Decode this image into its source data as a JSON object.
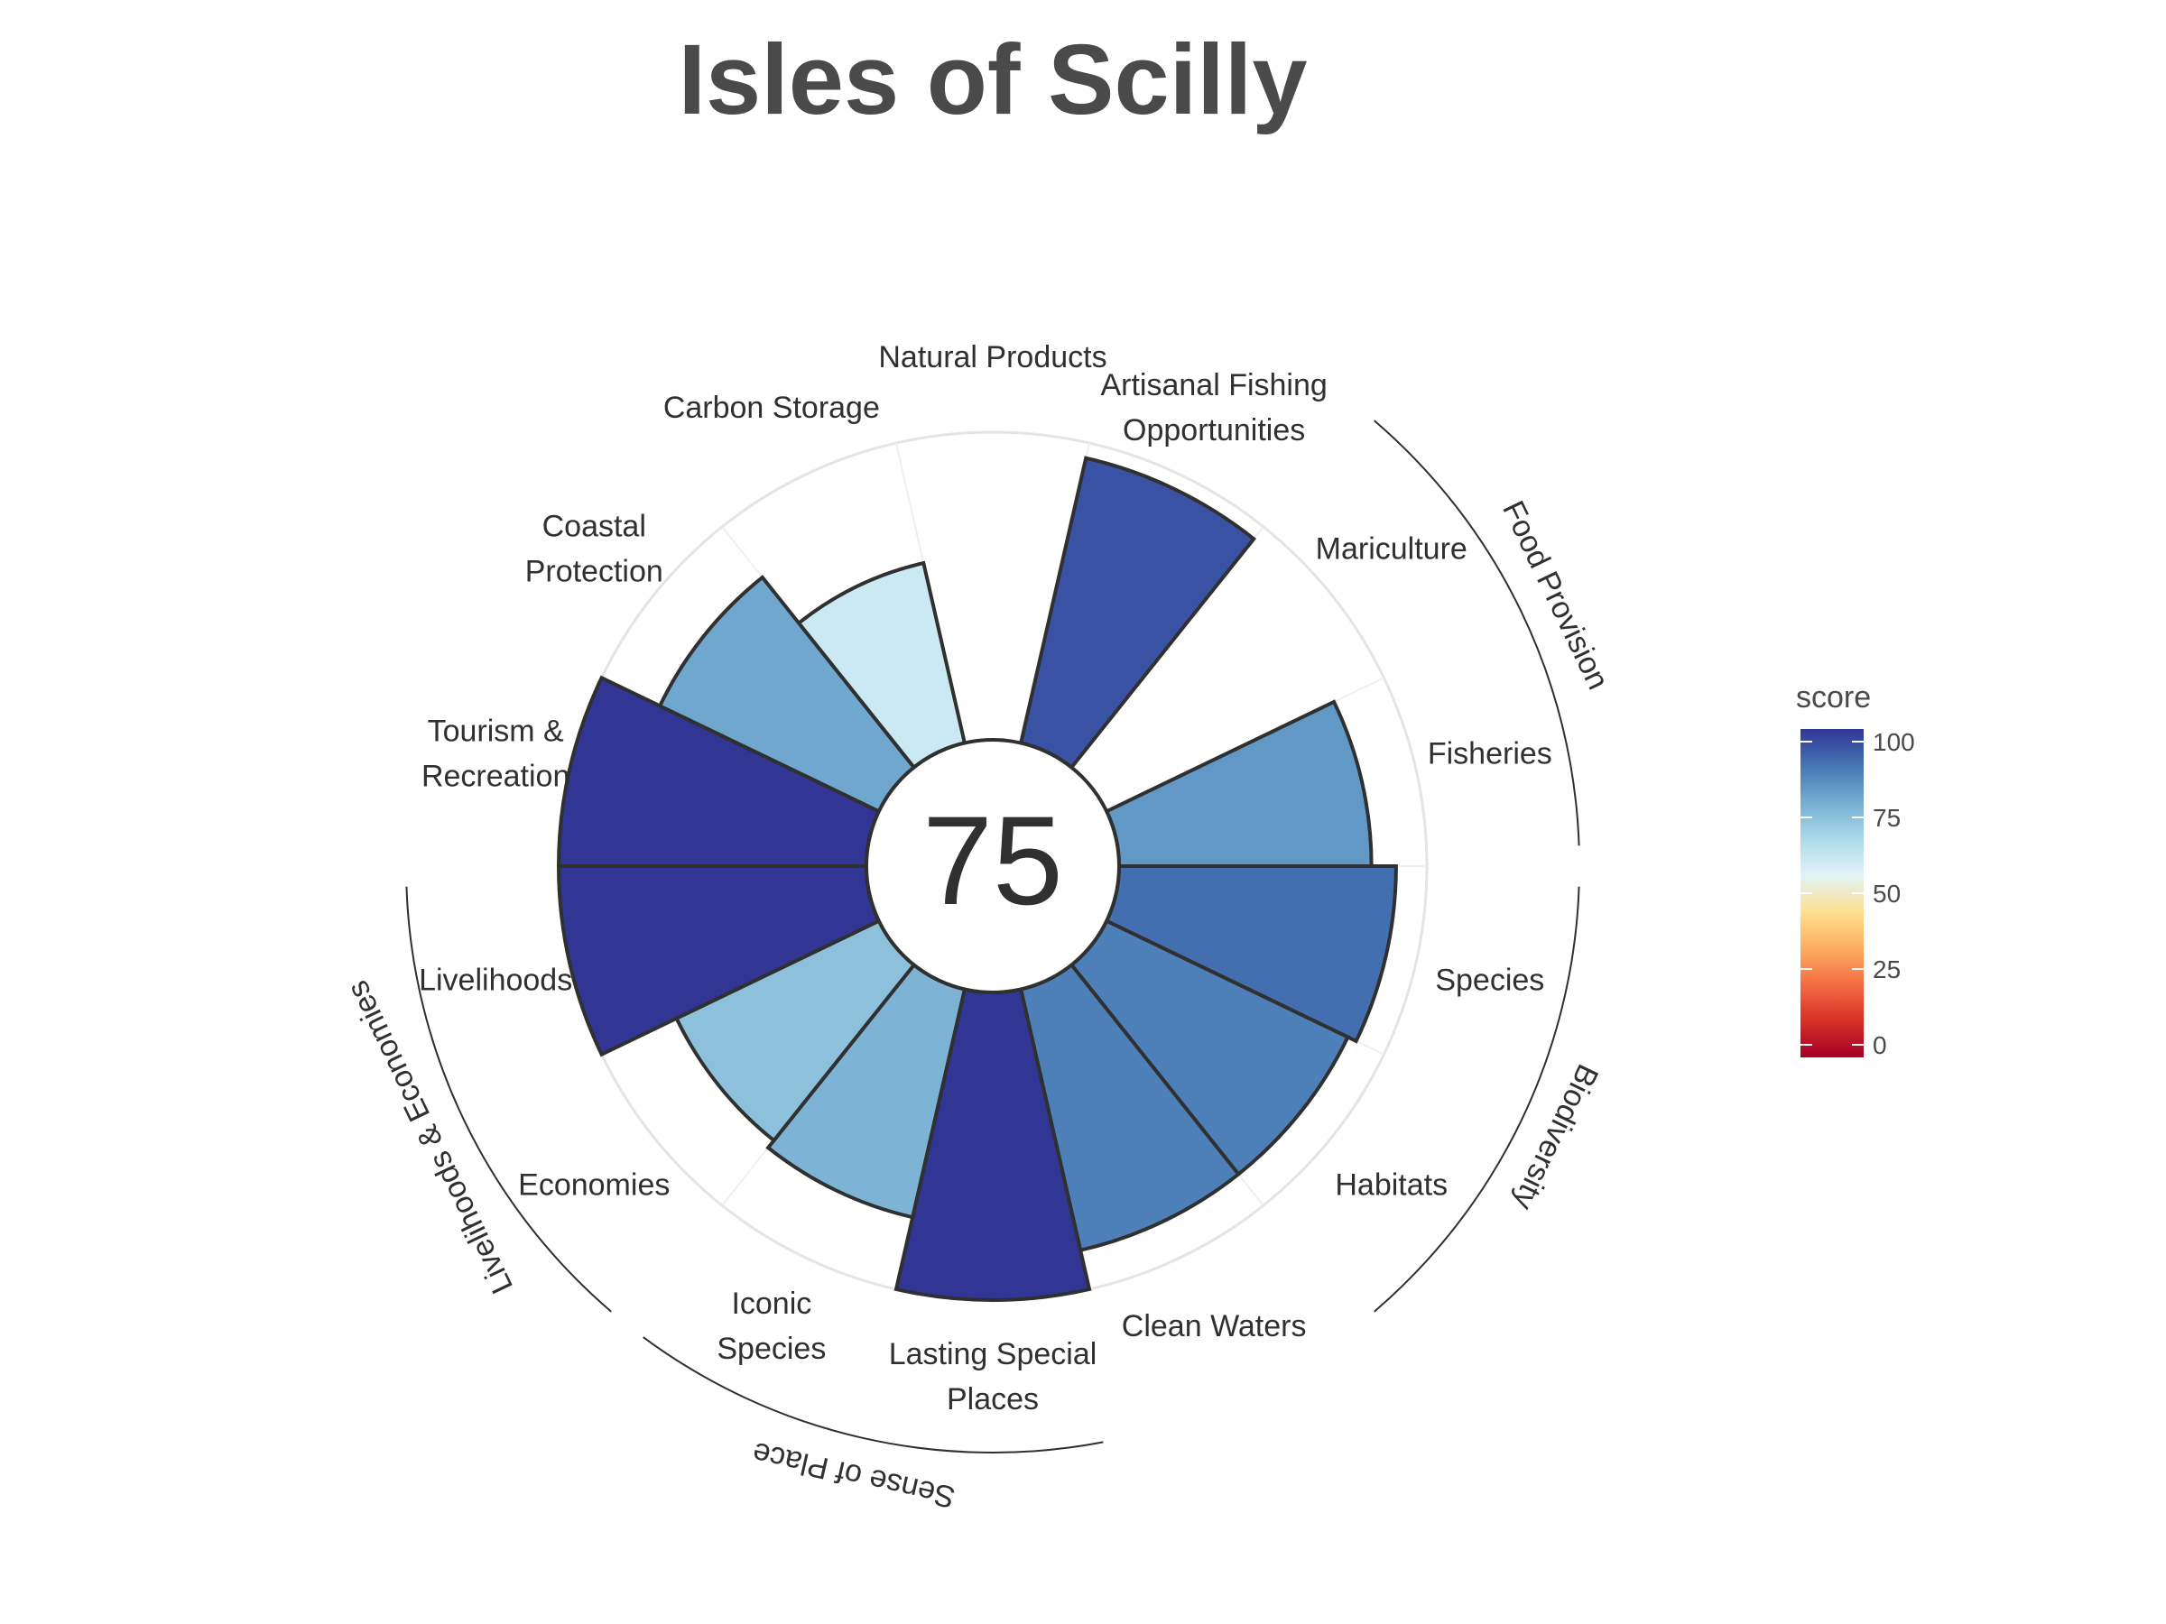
{
  "chart_data": {
    "type": "polar-bar",
    "title": "Isles of Scilly",
    "overall_score": "75",
    "ylim": [
      0,
      100
    ],
    "goals": [
      {
        "label": [
          "Natural Products"
        ],
        "value": 0,
        "group": null
      },
      {
        "label": [
          "Artisanal Fishing",
          "Opportunities"
        ],
        "value": 95,
        "group": null
      },
      {
        "label": [
          "Mariculture"
        ],
        "value": 0,
        "group": "Food Provision"
      },
      {
        "label": [
          "Fisheries"
        ],
        "value": 82,
        "group": "Food Provision"
      },
      {
        "label": [
          "Species"
        ],
        "value": 90,
        "group": "Biodiversity"
      },
      {
        "label": [
          "Habitats"
        ],
        "value": 87,
        "group": "Biodiversity"
      },
      {
        "label": [
          "Clean Waters"
        ],
        "value": 87,
        "group": null
      },
      {
        "label": [
          "Lasting Special",
          "Places"
        ],
        "value": 100,
        "group": "Sense of Place"
      },
      {
        "label": [
          "Iconic",
          "Species"
        ],
        "value": 76,
        "group": "Sense of Place"
      },
      {
        "label": [
          "Economies"
        ],
        "value": 73,
        "group": "Livelihoods & Economies"
      },
      {
        "label": [
          "Livelihoods"
        ],
        "value": 100,
        "group": "Livelihoods & Economies"
      },
      {
        "label": [
          "Tourism &",
          "Recreation"
        ],
        "value": 100,
        "group": null
      },
      {
        "label": [
          "Coastal",
          "Protection"
        ],
        "value": 79,
        "group": null
      },
      {
        "label": [
          "Carbon Storage"
        ],
        "value": 60,
        "group": null
      }
    ],
    "groups": [
      "Food Provision",
      "Biodiversity",
      "Sense of Place",
      "Livelihoods & Economies"
    ],
    "legend": {
      "title": "score",
      "ticks": [
        "0",
        "25",
        "50",
        "75",
        "100"
      ],
      "colors": [
        "#a50026",
        "#d73027",
        "#f46d43",
        "#fdae61",
        "#fee090",
        "#e0f3f8",
        "#abd9e9",
        "#74add1",
        "#4575b4",
        "#313695"
      ]
    }
  }
}
